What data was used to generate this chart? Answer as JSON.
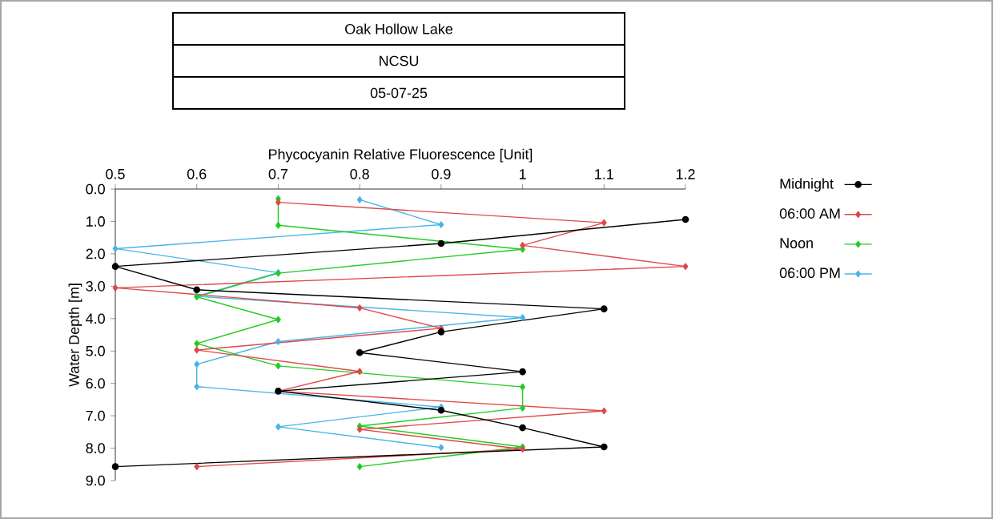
{
  "chart_data": {
    "type": "line",
    "title": "Oak Hollow Lake",
    "subtitle": "NCSU",
    "annotations": [
      "05-07-25"
    ],
    "xlabel": "Phycocyanin Relative Fluorescence [Unit]",
    "ylabel": "Water Depth [m]",
    "xlim": [
      0.5,
      1.2
    ],
    "xticks": [
      0.5,
      0.6,
      0.7,
      0.8,
      0.9,
      1,
      1.1,
      1.2
    ],
    "ylim": [
      9,
      0
    ],
    "yticks": [
      {
        "value": 0,
        "label": "0.0"
      },
      {
        "value": 1,
        "label": "1.0"
      },
      {
        "value": 2,
        "label": "2.0"
      },
      {
        "value": 3,
        "label": "3.0"
      },
      {
        "value": 4,
        "label": "4.0"
      },
      {
        "value": 5,
        "label": "5.0"
      },
      {
        "value": 6,
        "label": "6.0"
      },
      {
        "value": 7,
        "label": "7.0"
      },
      {
        "value": 8,
        "label": "8.0"
      },
      {
        "value": 9,
        "label": "9.0"
      }
    ],
    "grid": false,
    "legend": "top right",
    "line_style": "solid",
    "series": [
      {
        "name": "Midnight",
        "color": "#000000",
        "marker": "circle",
        "x": [
          1.2,
          0.9,
          0.5,
          0.6,
          1.1,
          0.9,
          0.8,
          1.0,
          0.7,
          0.9,
          1.0,
          1.1,
          0.5
        ],
        "values": [
          0.94,
          1.68,
          2.39,
          3.11,
          3.7,
          4.41,
          5.05,
          5.64,
          6.24,
          6.83,
          7.37,
          7.96,
          8.57
        ]
      },
      {
        "name": "06:00 AM",
        "color": "#e04848",
        "marker": "diamond",
        "x": [
          0.7,
          1.1,
          1.0,
          1.2,
          0.5,
          0.8,
          0.9,
          0.6,
          0.8,
          0.7,
          1.1,
          0.8,
          1.0,
          0.6
        ],
        "values": [
          0.41,
          1.04,
          1.74,
          2.39,
          3.05,
          3.67,
          4.3,
          4.97,
          5.63,
          6.24,
          6.85,
          7.42,
          8.03,
          8.57
        ]
      },
      {
        "name": "Noon",
        "color": "#22cc22",
        "marker": "diamond",
        "x": [
          0.7,
          0.7,
          1.0,
          0.7,
          0.6,
          0.7,
          0.6,
          0.7,
          1.0,
          1.0,
          0.8,
          1.0,
          0.8
        ],
        "values": [
          0.3,
          1.12,
          1.86,
          2.6,
          3.33,
          4.03,
          4.77,
          5.46,
          6.11,
          6.76,
          7.32,
          7.96,
          8.57
        ]
      },
      {
        "name": "06:00 PM",
        "color": "#4ab4e8",
        "marker": "diamond",
        "x": [
          0.8,
          0.9,
          0.5,
          0.7,
          0.6,
          1.0,
          0.7,
          0.6,
          0.6,
          0.9,
          0.7,
          0.9
        ],
        "values": [
          0.33,
          1.1,
          1.84,
          2.58,
          3.31,
          3.97,
          4.71,
          5.41,
          6.1,
          6.73,
          7.34,
          7.98
        ]
      }
    ]
  }
}
